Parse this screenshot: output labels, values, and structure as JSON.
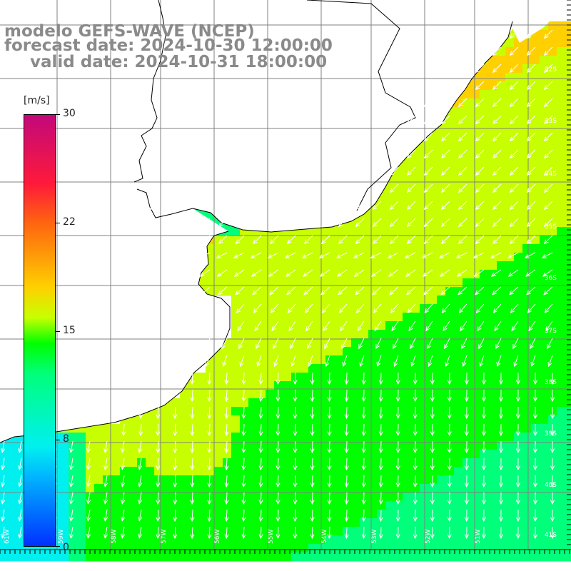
{
  "title": {
    "line1": "modelo GEFS-WAVE (NCEP)",
    "line2": "forecast date: 2024-10-30 12:00:00",
    "line3": "valid date: 2024-10-31 18:00:00"
  },
  "colorbar": {
    "unit": "[m/s]",
    "ticks": [
      "30",
      "22",
      "15",
      "8",
      "0"
    ],
    "tick_values": [
      30,
      22,
      15,
      8,
      0
    ],
    "range": [
      0,
      30
    ],
    "colors": [
      "#0030ff",
      "#00b4ff",
      "#00f0f0",
      "#00ff7a",
      "#00ff00",
      "#c8ff00",
      "#ffd000",
      "#ff6410",
      "#ff1a3a",
      "#c2087a"
    ]
  },
  "map": {
    "field": "wind speed and direction",
    "region": "South Atlantic off Uruguay / southern Brazil / Argentina",
    "wind_direction": "mostly toward southwest and south",
    "lat_labels": [
      "32S",
      "33S",
      "34S",
      "35S",
      "36S",
      "37S",
      "38S",
      "39S",
      "40S",
      "41S"
    ],
    "lon_labels": [
      "61W",
      "59W",
      "58W",
      "57W",
      "56W",
      "55W",
      "54W",
      "53W",
      "52W",
      "51W"
    ],
    "land_color": "#ffffff",
    "grid_color": "#808080"
  }
}
